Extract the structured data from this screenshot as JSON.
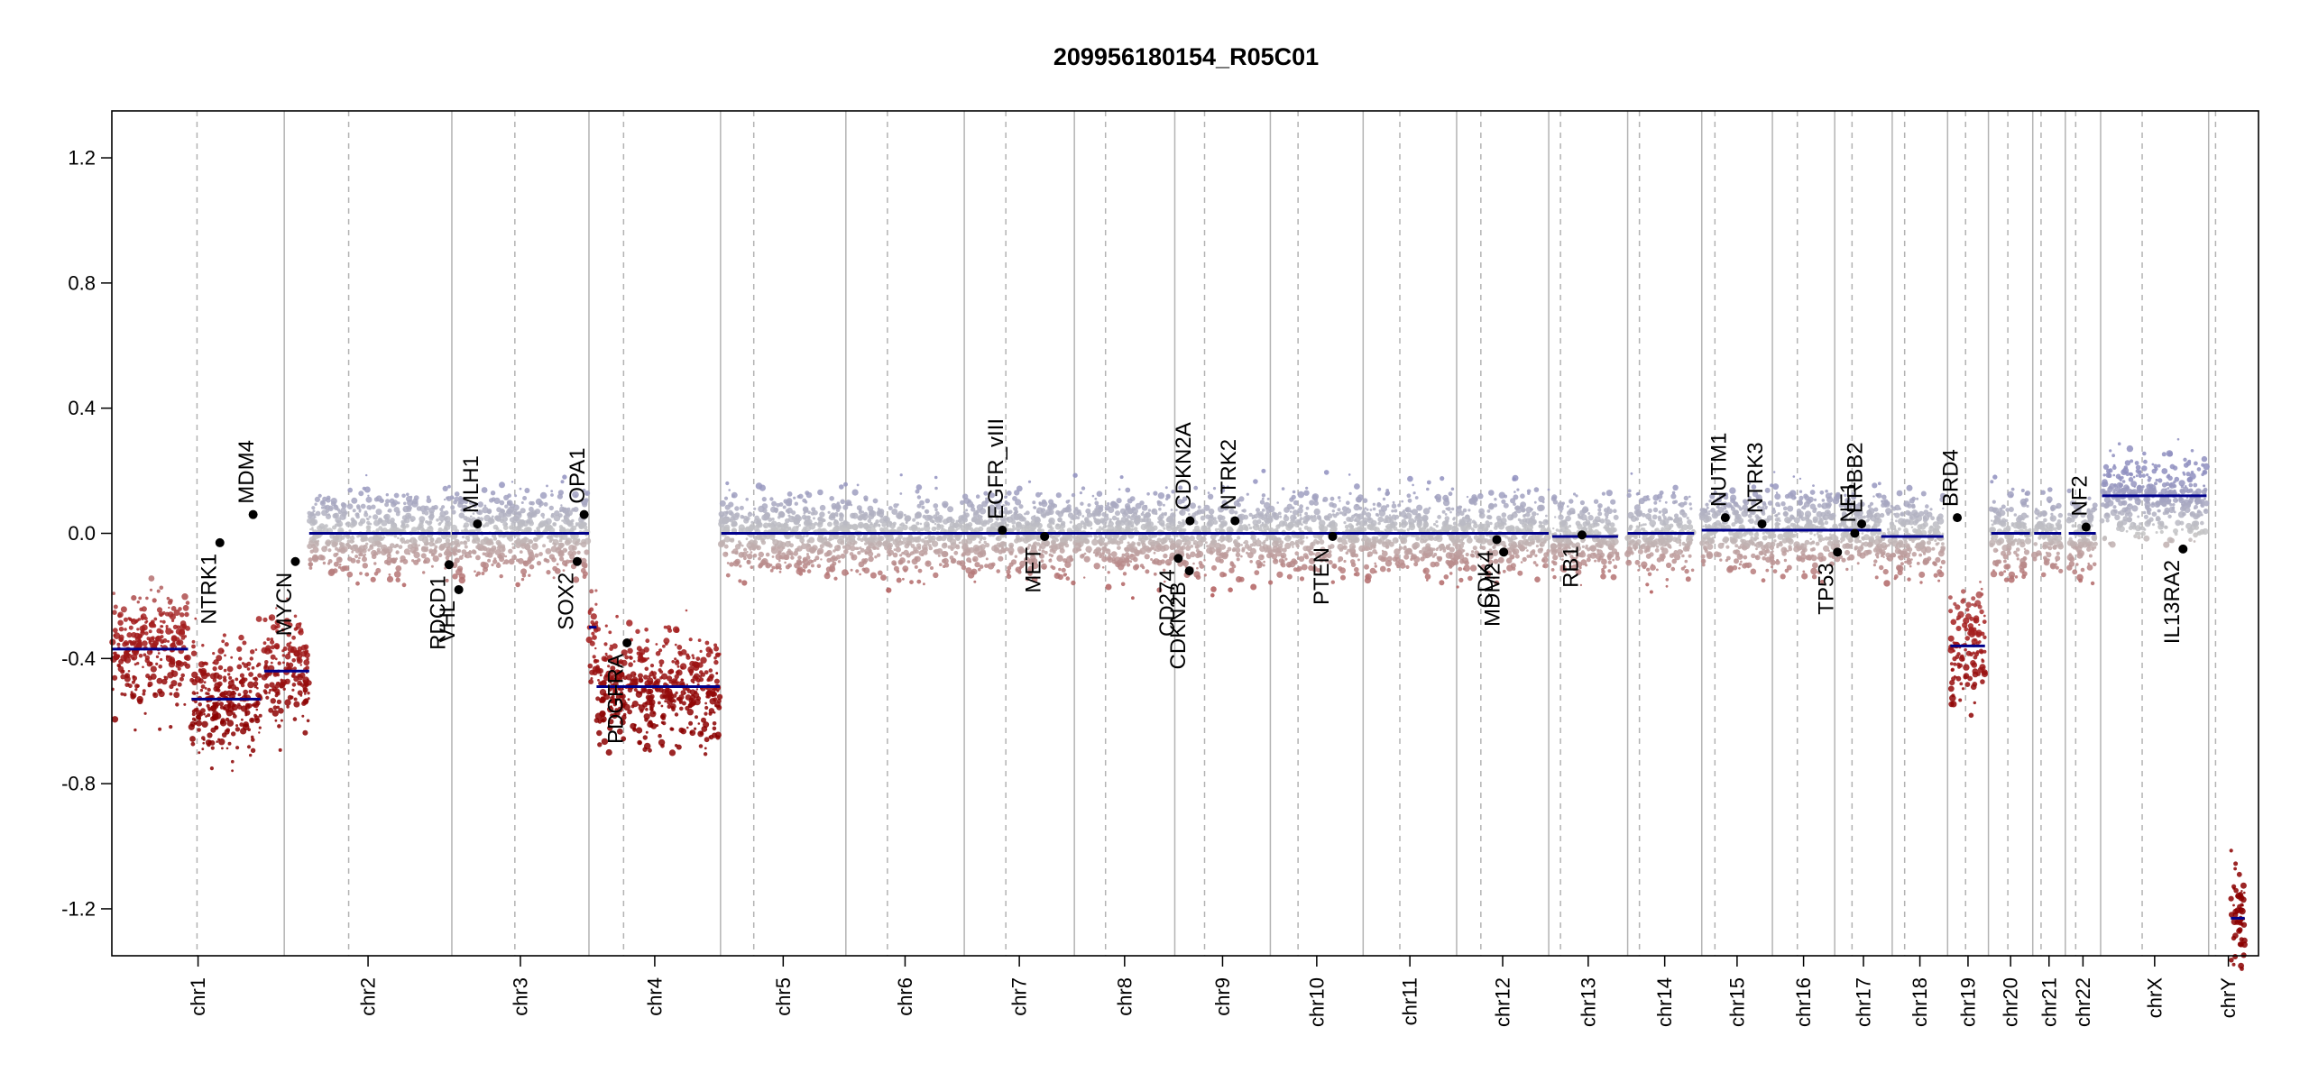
{
  "chart_data": {
    "type": "scatter",
    "title": "209956180154_R05C01",
    "xlabel": "",
    "ylabel": "",
    "ylim": [
      -1.35,
      1.35
    ],
    "yticks": [
      1.2,
      0.8,
      0.4,
      0.0,
      -0.4,
      -0.8,
      -1.2
    ],
    "ytick_labels": [
      "1.2",
      "0.8",
      "0.4",
      "0.0",
      "-0.4",
      "-0.8",
      "-1.2"
    ],
    "genome_length_mb": 3100,
    "chromosomes": [
      {
        "name": "chr1",
        "start": 0,
        "len": 249,
        "cent": 123
      },
      {
        "name": "chr2",
        "start": 249,
        "len": 242,
        "cent": 93
      },
      {
        "name": "chr3",
        "start": 491,
        "len": 198,
        "cent": 91
      },
      {
        "name": "chr4",
        "start": 689,
        "len": 190,
        "cent": 50
      },
      {
        "name": "chr5",
        "start": 879,
        "len": 181,
        "cent": 48
      },
      {
        "name": "chr6",
        "start": 1060,
        "len": 171,
        "cent": 60
      },
      {
        "name": "chr7",
        "start": 1231,
        "len": 159,
        "cent": 60
      },
      {
        "name": "chr8",
        "start": 1390,
        "len": 145,
        "cent": 45
      },
      {
        "name": "chr9",
        "start": 1535,
        "len": 138,
        "cent": 43
      },
      {
        "name": "chr10",
        "start": 1673,
        "len": 134,
        "cent": 40
      },
      {
        "name": "chr11",
        "start": 1807,
        "len": 135,
        "cent": 53
      },
      {
        "name": "chr12",
        "start": 1942,
        "len": 133,
        "cent": 35
      },
      {
        "name": "chr13",
        "start": 2075,
        "len": 114,
        "cent": 17
      },
      {
        "name": "chr14",
        "start": 2189,
        "len": 107,
        "cent": 17
      },
      {
        "name": "chr15",
        "start": 2296,
        "len": 102,
        "cent": 19
      },
      {
        "name": "chr16",
        "start": 2398,
        "len": 90,
        "cent": 36
      },
      {
        "name": "chr17",
        "start": 2488,
        "len": 83,
        "cent": 25
      },
      {
        "name": "chr18",
        "start": 2571,
        "len": 80,
        "cent": 18
      },
      {
        "name": "chr19",
        "start": 2651,
        "len": 59,
        "cent": 26
      },
      {
        "name": "chr20",
        "start": 2710,
        "len": 64,
        "cent": 28
      },
      {
        "name": "chr21",
        "start": 2774,
        "len": 47,
        "cent": 12
      },
      {
        "name": "chr22",
        "start": 2821,
        "len": 51,
        "cent": 15
      },
      {
        "name": "chrX",
        "start": 2872,
        "len": 156,
        "cent": 60
      },
      {
        "name": "chrY",
        "start": 3028,
        "len": 57,
        "cent": 10
      }
    ],
    "segments": [
      {
        "start": 0,
        "end": 110,
        "value": -0.37
      },
      {
        "start": 115,
        "end": 215,
        "value": -0.53
      },
      {
        "start": 220,
        "end": 285,
        "value": -0.44
      },
      {
        "start": 285,
        "end": 489,
        "value": 0.0
      },
      {
        "start": 491,
        "end": 650,
        "value": 0.0
      },
      {
        "start": 650,
        "end": 689,
        "value": 0.0
      },
      {
        "start": 689,
        "end": 700,
        "value": -0.3
      },
      {
        "start": 700,
        "end": 878,
        "value": -0.49
      },
      {
        "start": 880,
        "end": 1240,
        "value": 0.0
      },
      {
        "start": 1240,
        "end": 1810,
        "value": 0.0
      },
      {
        "start": 1810,
        "end": 2075,
        "value": 0.0
      },
      {
        "start": 2080,
        "end": 2175,
        "value": -0.01
      },
      {
        "start": 2189,
        "end": 2285,
        "value": 0.0
      },
      {
        "start": 2296,
        "end": 2555,
        "value": 0.01
      },
      {
        "start": 2555,
        "end": 2645,
        "value": -0.01
      },
      {
        "start": 2655,
        "end": 2705,
        "value": -0.36
      },
      {
        "start": 2714,
        "end": 2770,
        "value": 0.0
      },
      {
        "start": 2776,
        "end": 2815,
        "value": 0.0
      },
      {
        "start": 2826,
        "end": 2865,
        "value": 0.0
      },
      {
        "start": 2874,
        "end": 3025,
        "value": 0.12
      },
      {
        "start": 3060,
        "end": 3080,
        "value": -1.23
      }
    ],
    "genes": [
      {
        "name": "NTRK1",
        "pos": 156,
        "value": -0.03,
        "label_side": "below"
      },
      {
        "name": "MDM4",
        "pos": 204,
        "value": 0.06,
        "label_side": "above"
      },
      {
        "name": "MYCN",
        "pos": 265,
        "value": -0.09,
        "label_side": "below"
      },
      {
        "name": "RDCD1",
        "pos": 487,
        "value": -0.1,
        "label_side": "below"
      },
      {
        "name": "VHL",
        "pos": 501,
        "value": -0.18,
        "label_side": "below"
      },
      {
        "name": "MLH1",
        "pos": 528,
        "value": 0.03,
        "label_side": "above"
      },
      {
        "name": "SOX2",
        "pos": 672,
        "value": -0.09,
        "label_side": "below"
      },
      {
        "name": "OPA1",
        "pos": 682,
        "value": 0.06,
        "label_side": "above"
      },
      {
        "name": "PDGFRA",
        "pos": 744,
        "value": -0.35,
        "label_side": "below"
      },
      {
        "name": "EGFR_vIII",
        "pos": 1286,
        "value": 0.01,
        "label_side": "above"
      },
      {
        "name": "MET",
        "pos": 1347,
        "value": -0.01,
        "label_side": "below"
      },
      {
        "name": "CD274",
        "pos": 1540,
        "value": -0.08,
        "label_side": "below"
      },
      {
        "name": "CDKN2B",
        "pos": 1556,
        "value": -0.12,
        "label_side": "below"
      },
      {
        "name": "CDKN2A",
        "pos": 1557,
        "value": 0.04,
        "label_side": "above"
      },
      {
        "name": "NTRK2",
        "pos": 1622,
        "value": 0.04,
        "label_side": "above"
      },
      {
        "name": "PTEN",
        "pos": 1763,
        "value": -0.01,
        "label_side": "below"
      },
      {
        "name": "CDK4",
        "pos": 2000,
        "value": -0.02,
        "label_side": "below"
      },
      {
        "name": "MDM2",
        "pos": 2010,
        "value": -0.06,
        "label_side": "below"
      },
      {
        "name": "RB1",
        "pos": 2123,
        "value": -0.005,
        "label_side": "below"
      },
      {
        "name": "NUTM1",
        "pos": 2330,
        "value": 0.05,
        "label_side": "above"
      },
      {
        "name": "NTRK3",
        "pos": 2383,
        "value": 0.03,
        "label_side": "above"
      },
      {
        "name": "TP53",
        "pos": 2492,
        "value": -0.06,
        "label_side": "below"
      },
      {
        "name": "NF1",
        "pos": 2517,
        "value": 0.0,
        "label_side": "above"
      },
      {
        "name": "ERBB2",
        "pos": 2527,
        "value": 0.03,
        "label_side": "above"
      },
      {
        "name": "BRD4",
        "pos": 2665,
        "value": 0.05,
        "label_side": "above"
      },
      {
        "name": "NF2",
        "pos": 2851,
        "value": 0.02,
        "label_side": "above"
      },
      {
        "name": "IL13RA2",
        "pos": 2991,
        "value": -0.05,
        "label_side": "below"
      }
    ],
    "colors": {
      "gain": "#8f8fbf",
      "neutral": "#c4c4c4",
      "loss": "#a52020",
      "deep_loss": "#8b0000",
      "segment": "#00008b",
      "gene_dot": "#000000",
      "chrom_line": "#b3b3b3",
      "cent_line": "#b3b3b3"
    }
  }
}
